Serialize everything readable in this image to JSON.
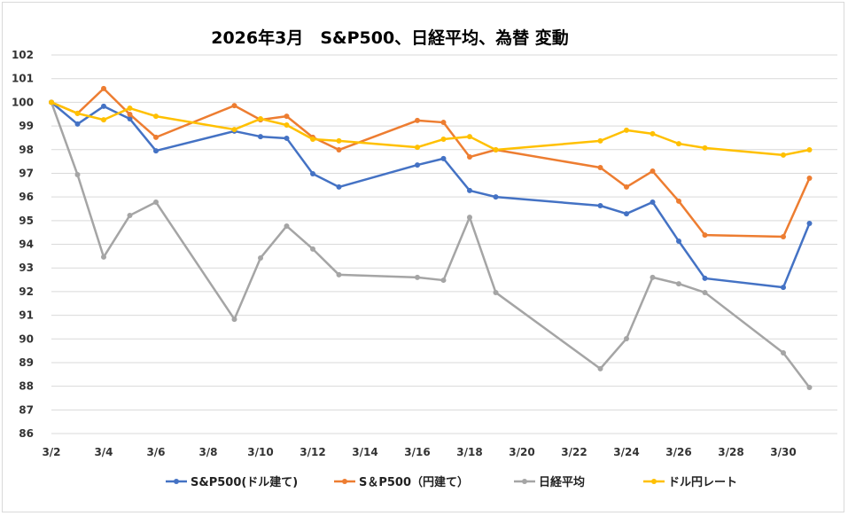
{
  "chart_data": {
    "type": "line",
    "title": "2026年3月　S&P500、日経平均、為替 変動",
    "xlabel": "",
    "ylabel": "",
    "ylim": [
      86,
      102
    ],
    "yticks": [
      "86",
      "87",
      "88",
      "89",
      "90",
      "91",
      "92",
      "93",
      "94",
      "95",
      "96",
      "97",
      "98",
      "99",
      "100",
      "101",
      "102"
    ],
    "xticks": [
      "3/2",
      "3/4",
      "3/6",
      "3/8",
      "3/10",
      "3/12",
      "3/14",
      "3/16",
      "3/18",
      "3/20",
      "3/22",
      "3/24",
      "3/26",
      "3/28",
      "3/30"
    ],
    "grid": "horizontal",
    "legend": "bottom",
    "x": [
      "3/2",
      "3/3",
      "3/4",
      "3/5",
      "3/6",
      "3/9",
      "3/10",
      "3/11",
      "3/12",
      "3/13",
      "3/16",
      "3/17",
      "3/18",
      "3/19",
      "3/23",
      "3/24",
      "3/25",
      "3/26",
      "3/27",
      "3/30",
      "3/31"
    ],
    "series": [
      {
        "name": "S&P500(ドル建て)",
        "color": "#4472c4",
        "values": [
          100,
          99.08,
          99.83,
          99.3,
          97.95,
          98.78,
          98.55,
          98.48,
          96.98,
          96.42,
          97.35,
          97.62,
          96.27,
          96.0,
          95.63,
          95.29,
          95.78,
          94.13,
          92.56,
          92.18,
          94.88
        ]
      },
      {
        "name": "S＆P500（円建て）",
        "color": "#ed7d31",
        "values": [
          100,
          99.53,
          100.58,
          99.49,
          98.52,
          99.86,
          99.26,
          99.41,
          98.52,
          97.99,
          99.23,
          99.15,
          97.69,
          97.99,
          97.24,
          96.42,
          97.09,
          95.82,
          94.39,
          94.32,
          96.79
        ]
      },
      {
        "name": "日経平均",
        "color": "#a5a5a5",
        "values": [
          100,
          96.94,
          93.46,
          95.22,
          95.78,
          90.83,
          93.42,
          94.77,
          93.8,
          92.71,
          92.6,
          92.48,
          95.14,
          91.96,
          88.74,
          90.01,
          92.6,
          92.33,
          91.96,
          89.41,
          87.95
        ]
      },
      {
        "name": "ドル円レート",
        "color": "#ffc000",
        "values": [
          100,
          99.53,
          99.26,
          99.75,
          99.41,
          98.85,
          99.3,
          99.04,
          98.44,
          98.37,
          98.1,
          98.44,
          98.55,
          97.99,
          98.37,
          98.82,
          98.67,
          98.25,
          98.07,
          97.77,
          97.99
        ]
      }
    ]
  }
}
